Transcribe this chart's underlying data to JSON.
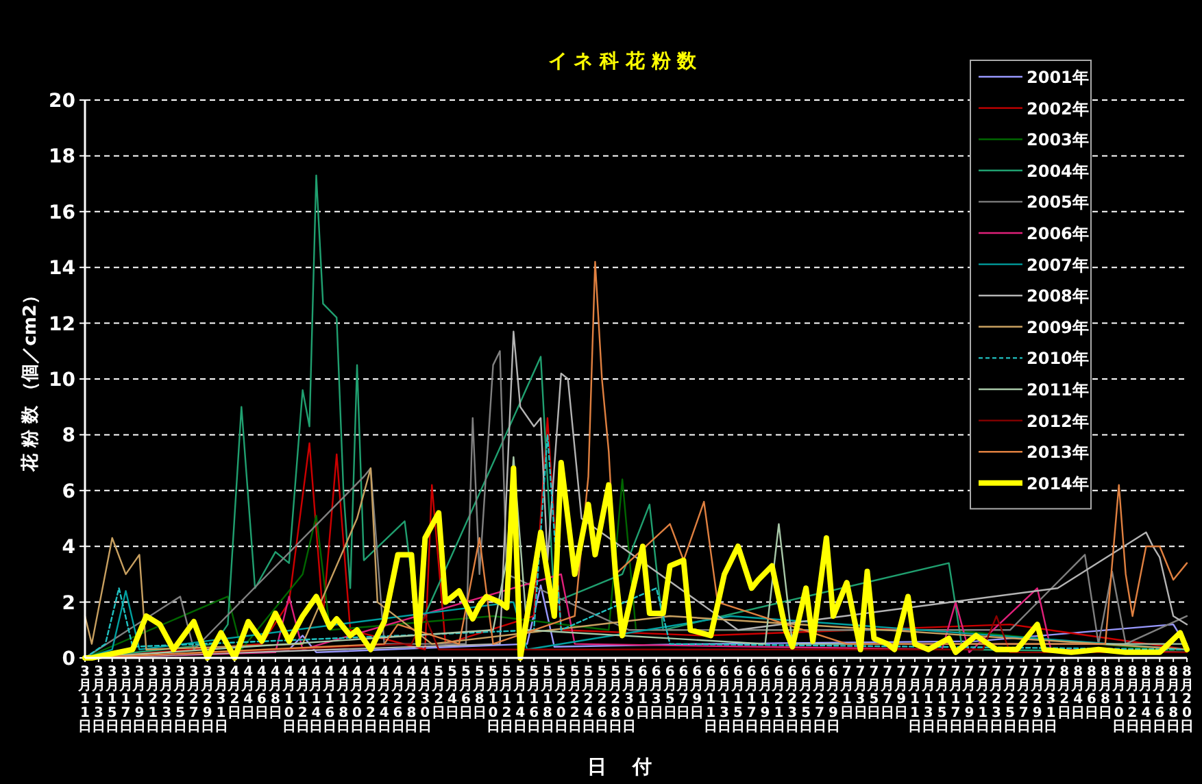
{
  "chart_data": {
    "type": "line",
    "title": "イ ネ 科 花 粉 数",
    "xlabel": "日　 付",
    "ylabel": "花 粉 数 （個／cm2）",
    "xlim": [
      "--03-11",
      "--08-20"
    ],
    "ylim": [
      0,
      20
    ],
    "yticks": [
      0,
      2,
      4,
      6,
      8,
      10,
      12,
      14,
      16,
      18,
      20
    ],
    "grid": "y",
    "legend": "top right",
    "marker": "none",
    "xticks": [
      {
        "value": "--03-11",
        "label": "3月11日"
      },
      {
        "value": "--03-13",
        "label": "3月13日"
      },
      {
        "value": "--03-15",
        "label": "3月15日"
      },
      {
        "value": "--03-17",
        "label": "3月17日"
      },
      {
        "value": "--03-19",
        "label": "3月19日"
      },
      {
        "value": "--03-21",
        "label": "3月21日"
      },
      {
        "value": "--03-23",
        "label": "3月23日"
      },
      {
        "value": "--03-25",
        "label": "3月25日"
      },
      {
        "value": "--03-27",
        "label": "3月27日"
      },
      {
        "value": "--03-29",
        "label": "3月29日"
      },
      {
        "value": "--03-31",
        "label": "3月31日"
      },
      {
        "value": "--04-02",
        "label": "4月2日"
      },
      {
        "value": "--04-04",
        "label": "4月4日"
      },
      {
        "value": "--04-06",
        "label": "4月6日"
      },
      {
        "value": "--04-08",
        "label": "4月8日"
      },
      {
        "value": "--04-10",
        "label": "4月10日"
      },
      {
        "value": "--04-12",
        "label": "4月12日"
      },
      {
        "value": "--04-14",
        "label": "4月14日"
      },
      {
        "value": "--04-16",
        "label": "4月16日"
      },
      {
        "value": "--04-18",
        "label": "4月18日"
      },
      {
        "value": "--04-20",
        "label": "4月20日"
      },
      {
        "value": "--04-22",
        "label": "4月22日"
      },
      {
        "value": "--04-24",
        "label": "4月24日"
      },
      {
        "value": "--04-26",
        "label": "4月26日"
      },
      {
        "value": "--04-28",
        "label": "4月28日"
      },
      {
        "value": "--04-30",
        "label": "4月30日"
      },
      {
        "value": "--05-02",
        "label": "5月2日"
      },
      {
        "value": "--05-04",
        "label": "5月4日"
      },
      {
        "value": "--05-06",
        "label": "5月6日"
      },
      {
        "value": "--05-08",
        "label": "5月8日"
      },
      {
        "value": "--05-10",
        "label": "5月10日"
      },
      {
        "value": "--05-12",
        "label": "5月12日"
      },
      {
        "value": "--05-14",
        "label": "5月14日"
      },
      {
        "value": "--05-16",
        "label": "5月16日"
      },
      {
        "value": "--05-18",
        "label": "5月18日"
      },
      {
        "value": "--05-20",
        "label": "5月20日"
      },
      {
        "value": "--05-22",
        "label": "5月22日"
      },
      {
        "value": "--05-24",
        "label": "5月24日"
      },
      {
        "value": "--05-26",
        "label": "5月26日"
      },
      {
        "value": "--05-28",
        "label": "5月28日"
      },
      {
        "value": "--05-30",
        "label": "5月30日"
      },
      {
        "value": "--06-01",
        "label": "6月1日"
      },
      {
        "value": "--06-03",
        "label": "6月3日"
      },
      {
        "value": "--06-05",
        "label": "6月5日"
      },
      {
        "value": "--06-07",
        "label": "6月7日"
      },
      {
        "value": "--06-09",
        "label": "6月9日"
      },
      {
        "value": "--06-11",
        "label": "6月11日"
      },
      {
        "value": "--06-13",
        "label": "6月13日"
      },
      {
        "value": "--06-15",
        "label": "6月15日"
      },
      {
        "value": "--06-17",
        "label": "6月17日"
      },
      {
        "value": "--06-19",
        "label": "6月19日"
      },
      {
        "value": "--06-21",
        "label": "6月21日"
      },
      {
        "value": "--06-23",
        "label": "6月23日"
      },
      {
        "value": "--06-25",
        "label": "6月25日"
      },
      {
        "value": "--06-27",
        "label": "6月27日"
      },
      {
        "value": "--06-29",
        "label": "6月29日"
      },
      {
        "value": "--07-01",
        "label": "7月1日"
      },
      {
        "value": "--07-03",
        "label": "7月3日"
      },
      {
        "value": "--07-05",
        "label": "7月5日"
      },
      {
        "value": "--07-07",
        "label": "7月7日"
      },
      {
        "value": "--07-09",
        "label": "7月9日"
      },
      {
        "value": "--07-11",
        "label": "7月11日"
      },
      {
        "value": "--07-13",
        "label": "7月13日"
      },
      {
        "value": "--07-15",
        "label": "7月15日"
      },
      {
        "value": "--07-17",
        "label": "7月17日"
      },
      {
        "value": "--07-19",
        "label": "7月19日"
      },
      {
        "value": "--07-21",
        "label": "7月21日"
      },
      {
        "value": "--07-23",
        "label": "7月23日"
      },
      {
        "value": "--07-25",
        "label": "7月25日"
      },
      {
        "value": "--07-27",
        "label": "7月27日"
      },
      {
        "value": "--07-29",
        "label": "7月29日"
      },
      {
        "value": "--07-31",
        "label": "7月31日"
      },
      {
        "value": "--08-02",
        "label": "8月2日"
      },
      {
        "value": "--08-04",
        "label": "8月4日"
      },
      {
        "value": "--08-06",
        "label": "8月6日"
      },
      {
        "value": "--08-08",
        "label": "8月8日"
      },
      {
        "value": "--08-10",
        "label": "8月10日"
      },
      {
        "value": "--08-12",
        "label": "8月12日"
      },
      {
        "value": "--08-14",
        "label": "8月14日"
      },
      {
        "value": "--08-16",
        "label": "8月16日"
      },
      {
        "value": "--08-18",
        "label": "8月18日"
      },
      {
        "value": "--08-20",
        "label": "8月20日"
      }
    ],
    "series": [
      {
        "name": "2001年",
        "color": "#9999ff",
        "x": [
          "--03-11",
          "--04-10",
          "--04-12",
          "--04-14",
          "--05-15",
          "--05-17",
          "--05-19",
          "--06-10",
          "--07-20",
          "--08-18",
          "--08-20"
        ],
        "values": [
          0,
          0.3,
          0.8,
          0.2,
          0.5,
          2.6,
          0.4,
          0.5,
          0.6,
          1.2,
          0.4
        ]
      },
      {
        "name": "2002年",
        "color": "#cc0000",
        "x": [
          "--03-11",
          "--04-06",
          "--04-10",
          "--04-13",
          "--04-15",
          "--04-17",
          "--04-19",
          "--04-30",
          "--05-01",
          "--05-03",
          "--05-16",
          "--05-18",
          "--05-20",
          "--06-10",
          "--07-25",
          "--08-20"
        ],
        "values": [
          0,
          0.5,
          2.0,
          7.7,
          1.5,
          7.3,
          1.0,
          0.3,
          6.2,
          0.5,
          1.5,
          8.6,
          1.0,
          0.8,
          1.2,
          0.3
        ]
      },
      {
        "name": "2003年",
        "color": "#006600",
        "x": [
          "--03-11",
          "--04-01",
          "--04-03",
          "--04-12",
          "--04-14",
          "--04-16",
          "--05-10",
          "--05-27",
          "--05-29",
          "--05-31",
          "--07-16",
          "--08-20"
        ],
        "values": [
          0,
          2.2,
          0.3,
          3.0,
          5.1,
          1.0,
          1.5,
          1.0,
          6.4,
          1.0,
          1.0,
          0.2
        ]
      },
      {
        "name": "2004年",
        "color": "#20a070",
        "x": [
          "--03-11",
          "--03-30",
          "--04-01",
          "--04-03",
          "--04-05",
          "--04-08",
          "--04-10",
          "--04-12",
          "--04-13",
          "--04-14",
          "--04-15",
          "--04-17",
          "--04-18",
          "--04-19",
          "--04-20",
          "--04-21",
          "--04-27",
          "--04-29",
          "--05-17",
          "--05-19",
          "--05-29",
          "--06-02",
          "--06-04",
          "--07-16",
          "--07-18",
          "--08-20"
        ],
        "values": [
          0,
          0.5,
          1.2,
          9.0,
          2.5,
          3.8,
          3.4,
          9.6,
          8.3,
          17.3,
          12.7,
          12.2,
          6.0,
          2.5,
          10.5,
          3.5,
          4.9,
          1.0,
          10.8,
          2.0,
          3.0,
          5.5,
          1.0,
          3.4,
          0.3,
          0.2
        ]
      },
      {
        "name": "2005年",
        "color": "#808080",
        "x": [
          "--03-11",
          "--03-25",
          "--03-27",
          "--04-21",
          "--04-22",
          "--04-24",
          "--05-06",
          "--05-07",
          "--05-08",
          "--05-10",
          "--05-11",
          "--05-12",
          "--05-30",
          "--07-25",
          "--08-05",
          "--08-07",
          "--08-09",
          "--08-11",
          "--08-20"
        ],
        "values": [
          0,
          2.2,
          0.3,
          6.5,
          6.8,
          0.5,
          0.5,
          8.6,
          3.0,
          10.5,
          11.0,
          3.0,
          1.0,
          1.0,
          3.7,
          0.5,
          3.1,
          0.5,
          1.5
        ]
      },
      {
        "name": "2006年",
        "color": "#e0207a",
        "x": [
          "--03-11",
          "--04-08",
          "--04-10",
          "--04-12",
          "--05-20",
          "--05-22",
          "--07-15",
          "--07-17",
          "--07-19",
          "--07-29",
          "--07-31",
          "--08-20"
        ],
        "values": [
          0,
          0.2,
          2.2,
          0.3,
          3.0,
          0.5,
          0.3,
          2.0,
          0.2,
          2.5,
          0.3,
          0.2
        ]
      },
      {
        "name": "2007年",
        "color": "#00a0a0",
        "x": [
          "--03-11",
          "--03-15",
          "--03-17",
          "--03-19",
          "--05-13",
          "--05-15",
          "--06-14",
          "--08-20"
        ],
        "values": [
          0,
          0.3,
          2.4,
          0.3,
          2.0,
          0.3,
          1.5,
          0.3
        ]
      },
      {
        "name": "2008年",
        "color": "#b4b4b4",
        "x": [
          "--03-11",
          "--05-11",
          "--05-13",
          "--05-14",
          "--05-16",
          "--05-17",
          "--05-18",
          "--05-20",
          "--05-21",
          "--05-23",
          "--06-15",
          "--08-01",
          "--08-14",
          "--08-15",
          "--08-16",
          "--08-18",
          "--08-20"
        ],
        "values": [
          0,
          0.5,
          11.7,
          9.0,
          8.3,
          8.6,
          3.5,
          10.2,
          10.0,
          5.0,
          1.0,
          2.5,
          4.5,
          4.0,
          3.6,
          1.5,
          1.2
        ]
      },
      {
        "name": "2009年",
        "color": "#c8a060",
        "x": [
          "--03-11",
          "--03-12",
          "--03-15",
          "--03-17",
          "--03-19",
          "--03-20",
          "--04-12",
          "--04-20",
          "--04-22",
          "--04-23",
          "--05-01",
          "--06-05",
          "--08-20"
        ],
        "values": [
          1.5,
          0.5,
          4.3,
          3.0,
          3.7,
          0.3,
          0.5,
          5.0,
          6.8,
          2.0,
          0.5,
          1.5,
          0.3
        ]
      },
      {
        "name": "2010年",
        "color": "#20c0c0",
        "line_style": "dashed",
        "x": [
          "--03-11",
          "--03-14",
          "--03-16",
          "--03-18",
          "--05-16",
          "--05-18",
          "--05-20",
          "--06-03",
          "--06-05",
          "--08-20"
        ],
        "values": [
          0,
          0.5,
          2.5,
          0.4,
          1.0,
          8.0,
          1.0,
          2.5,
          0.5,
          0.3
        ]
      },
      {
        "name": "2011年",
        "color": "#a8c8a8",
        "x": [
          "--03-11",
          "--05-10",
          "--05-12",
          "--05-13",
          "--05-15",
          "--06-19",
          "--06-21",
          "--06-23",
          "--08-20"
        ],
        "values": [
          0,
          1.0,
          3.5,
          7.2,
          1.0,
          0.5,
          4.8,
          0.5,
          0.5
        ]
      },
      {
        "name": "2012年",
        "color": "#8b0000",
        "x": [
          "--03-11",
          "--04-28",
          "--04-30",
          "--05-02",
          "--07-21",
          "--07-23",
          "--07-25",
          "--08-20"
        ],
        "values": [
          0,
          0.5,
          1.5,
          0.3,
          0.3,
          1.5,
          0.2,
          0.2
        ]
      },
      {
        "name": "2013年",
        "color": "#e08040",
        "x": [
          "--03-11",
          "--04-24",
          "--04-26",
          "--05-05",
          "--05-08",
          "--05-10",
          "--05-22",
          "--05-24",
          "--05-25",
          "--05-26",
          "--05-27",
          "--05-28",
          "--06-05",
          "--06-07",
          "--06-10",
          "--06-12",
          "--07-01",
          "--08-08",
          "--08-10",
          "--08-11",
          "--08-12",
          "--08-14",
          "--08-16",
          "--08-18",
          "--08-20"
        ],
        "values": [
          0,
          0.5,
          1.2,
          0.5,
          4.3,
          0.5,
          1.5,
          6.5,
          14.2,
          10.0,
          7.4,
          3.0,
          4.8,
          3.5,
          5.6,
          2.0,
          0.5,
          0.5,
          6.2,
          3.0,
          1.5,
          4.0,
          4.0,
          2.8,
          3.4
        ]
      },
      {
        "name": "2014年",
        "color": "#ffff00",
        "x": [
          "--03-11",
          "--03-12",
          "--03-18",
          "--03-20",
          "--03-22",
          "--03-24",
          "--03-27",
          "--03-29",
          "--03-31",
          "--04-02",
          "--04-04",
          "--04-06",
          "--04-08",
          "--04-10",
          "--04-12",
          "--04-14",
          "--04-16",
          "--04-17",
          "--04-19",
          "--04-20",
          "--04-22",
          "--04-24",
          "--04-26",
          "--04-28",
          "--04-29",
          "--04-30",
          "--05-02",
          "--05-03",
          "--05-05",
          "--05-07",
          "--05-08",
          "--05-09",
          "--05-11",
          "--05-12",
          "--05-13",
          "--05-14",
          "--05-16",
          "--05-17",
          "--05-19",
          "--05-20",
          "--05-22",
          "--05-24",
          "--05-25",
          "--05-27",
          "--05-28",
          "--05-29",
          "--06-01",
          "--06-02",
          "--06-04",
          "--06-05",
          "--06-07",
          "--06-08",
          "--06-11",
          "--06-13",
          "--06-15",
          "--06-17",
          "--06-18",
          "--06-20",
          "--06-22",
          "--06-23",
          "--06-25",
          "--06-26",
          "--06-28",
          "--06-29",
          "--07-01",
          "--07-03",
          "--07-04",
          "--07-05",
          "--07-07",
          "--07-08",
          "--07-10",
          "--07-11",
          "--07-13",
          "--07-16",
          "--07-17",
          "--07-20",
          "--07-23",
          "--07-26",
          "--07-29",
          "--07-30",
          "--08-03",
          "--08-07",
          "--08-11",
          "--08-16",
          "--08-19",
          "--08-20"
        ],
        "values": [
          0,
          0,
          0.3,
          1.5,
          1.2,
          0.3,
          1.3,
          0,
          0.9,
          0,
          1.3,
          0.6,
          1.6,
          0.6,
          1.5,
          2.2,
          1.1,
          1.4,
          0.8,
          1.0,
          0.3,
          1.3,
          3.7,
          3.7,
          0.5,
          4.3,
          5.2,
          2.0,
          2.4,
          1.4,
          1.9,
          2.2,
          2.0,
          1.8,
          6.8,
          0,
          3.0,
          4.5,
          1.5,
          7.0,
          3.0,
          5.5,
          3.7,
          6.2,
          3.0,
          0.8,
          4.0,
          1.6,
          1.6,
          3.3,
          3.5,
          1.0,
          0.8,
          3.0,
          4.0,
          2.5,
          2.8,
          3.3,
          1.0,
          0.4,
          2.5,
          0.6,
          4.3,
          1.5,
          2.7,
          0.3,
          3.1,
          0.7,
          0.5,
          0.3,
          2.2,
          0.5,
          0.3,
          0.7,
          0.2,
          0.8,
          0.3,
          0.3,
          1.2,
          0.3,
          0.2,
          0.3,
          0.2,
          0.2,
          0.9,
          0.3
        ]
      }
    ]
  }
}
